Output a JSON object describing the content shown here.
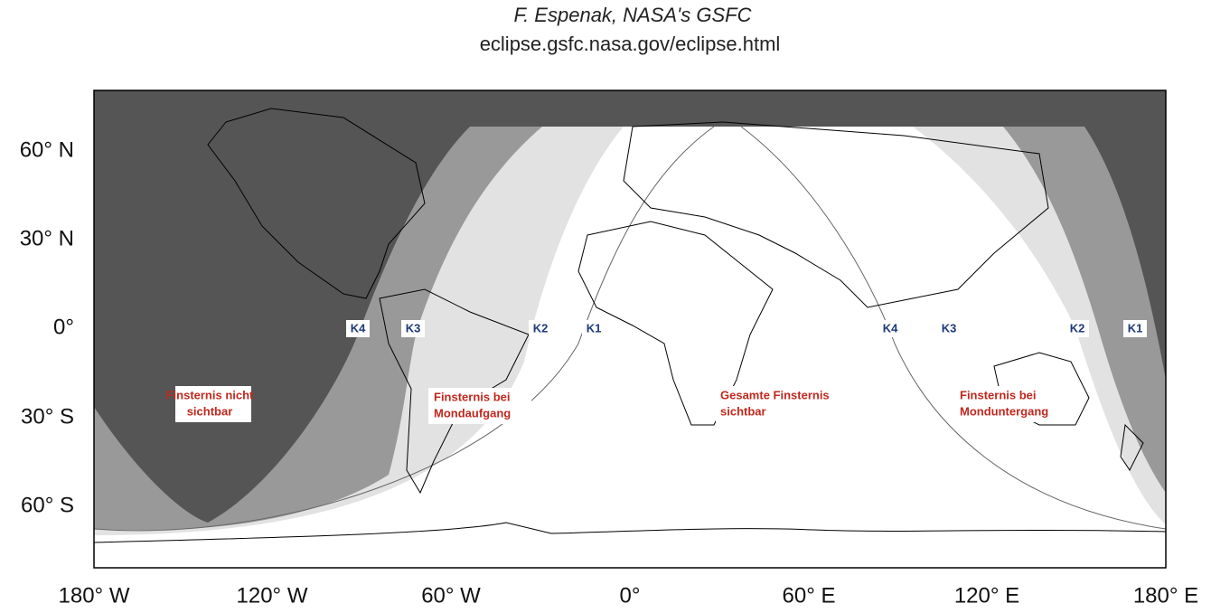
{
  "header": {
    "author": "F. Espenak, NASA's GSFC",
    "url": "eclipse.gsfc.nasa.gov/eclipse.html"
  },
  "lat_labels": [
    "60° N",
    "30° N",
    "0°",
    "30° S",
    "60° S"
  ],
  "lon_labels": [
    "180° W",
    "120° W",
    "60° W",
    "0°",
    "60° E",
    "120° E",
    "180° E"
  ],
  "contact_labels": [
    "K4",
    "K3",
    "K2",
    "K1",
    "K4",
    "K3",
    "K2",
    "K1"
  ],
  "region_labels": [
    {
      "lines": [
        "Finsternis nicht",
        "sichtbar"
      ]
    },
    {
      "lines": [
        "Finsternis bei",
        "Mondaufgang"
      ]
    },
    {
      "lines": [
        "Gesamte Finsternis",
        "sichtbar"
      ]
    },
    {
      "lines": [
        "Finsternis bei",
        "Monduntergang"
      ]
    }
  ]
}
